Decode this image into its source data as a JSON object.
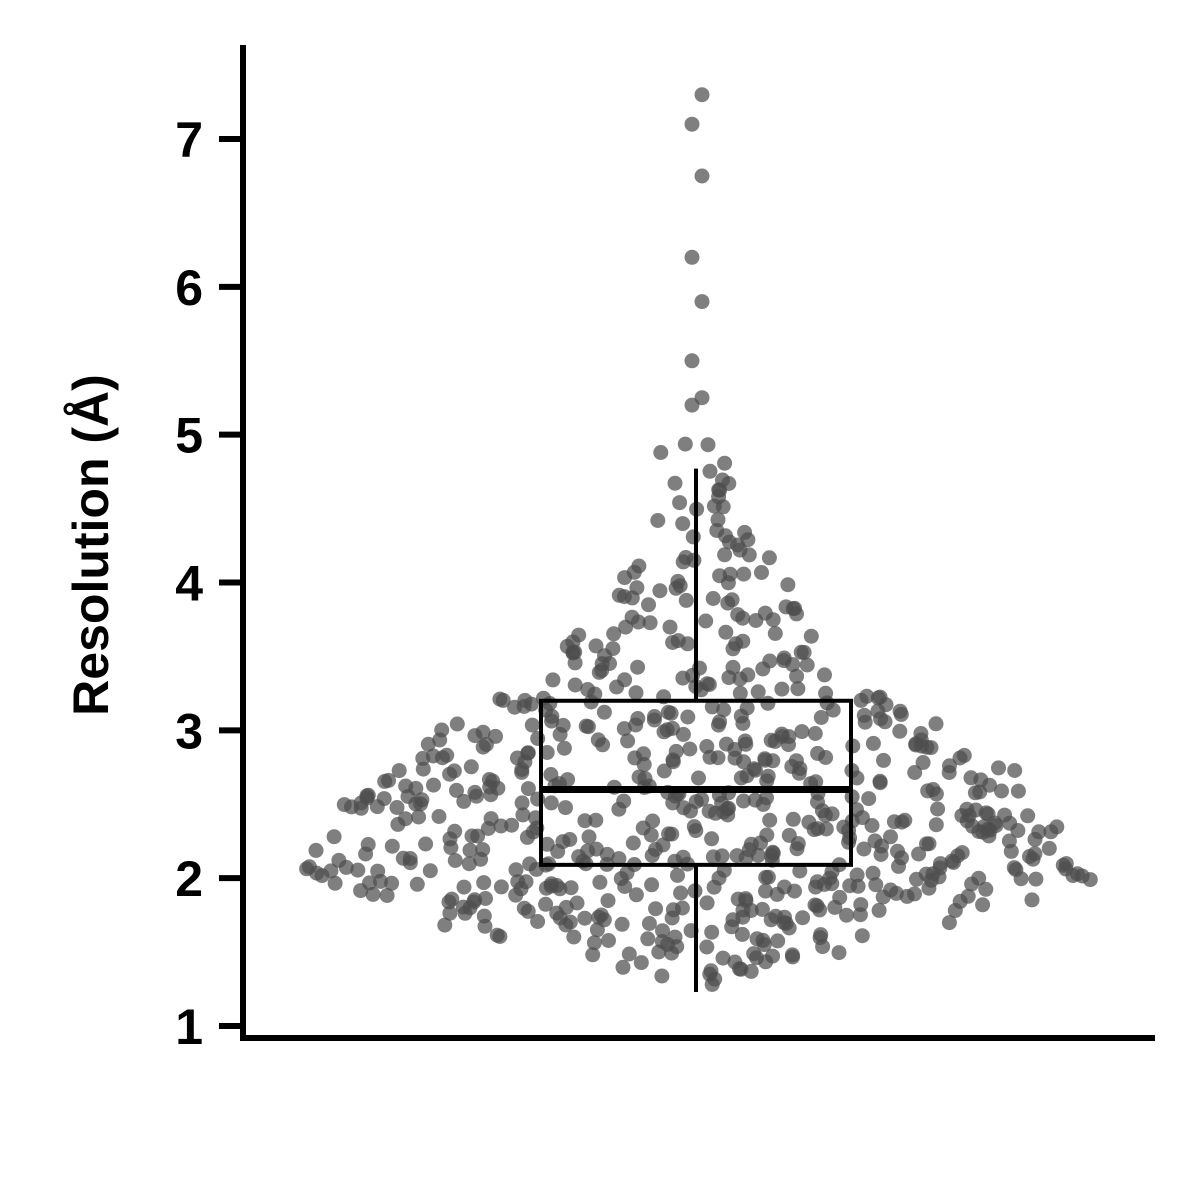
{
  "chart_data": {
    "type": "scatter",
    "subtype": "box-and-swarm",
    "title": "",
    "xlabel": "",
    "ylabel": "Resolution (Å)",
    "ylim": [
      1,
      7.6
    ],
    "yticks": [
      1,
      2,
      3,
      4,
      5,
      6,
      7
    ],
    "grid": false,
    "legend": "none",
    "point_color": "#4d4d4d",
    "box": {
      "q1": 2.09,
      "median": 2.6,
      "q3": 3.2,
      "whisker_low": 1.23,
      "whisker_high": 4.77
    },
    "distribution": [
      {
        "y": 1.3,
        "n": 4
      },
      {
        "y": 1.4,
        "n": 8
      },
      {
        "y": 1.5,
        "n": 14
      },
      {
        "y": 1.6,
        "n": 20
      },
      {
        "y": 1.7,
        "n": 26
      },
      {
        "y": 1.8,
        "n": 32
      },
      {
        "y": 1.9,
        "n": 38
      },
      {
        "y": 2.0,
        "n": 44
      },
      {
        "y": 2.1,
        "n": 44
      },
      {
        "y": 2.2,
        "n": 42
      },
      {
        "y": 2.3,
        "n": 40
      },
      {
        "y": 2.4,
        "n": 38
      },
      {
        "y": 2.5,
        "n": 38
      },
      {
        "y": 2.6,
        "n": 36
      },
      {
        "y": 2.7,
        "n": 34
      },
      {
        "y": 2.8,
        "n": 30
      },
      {
        "y": 2.9,
        "n": 28
      },
      {
        "y": 3.0,
        "n": 26
      },
      {
        "y": 3.1,
        "n": 22
      },
      {
        "y": 3.2,
        "n": 20
      },
      {
        "y": 3.3,
        "n": 16
      },
      {
        "y": 3.4,
        "n": 14
      },
      {
        "y": 3.5,
        "n": 12
      },
      {
        "y": 3.6,
        "n": 12
      },
      {
        "y": 3.7,
        "n": 10
      },
      {
        "y": 3.8,
        "n": 9
      },
      {
        "y": 3.9,
        "n": 8
      },
      {
        "y": 4.0,
        "n": 8
      },
      {
        "y": 4.1,
        "n": 6
      },
      {
        "y": 4.2,
        "n": 6
      },
      {
        "y": 4.3,
        "n": 6
      },
      {
        "y": 4.4,
        "n": 4
      },
      {
        "y": 4.5,
        "n": 4
      },
      {
        "y": 4.6,
        "n": 3
      },
      {
        "y": 4.7,
        "n": 3
      },
      {
        "y": 4.8,
        "n": 2
      },
      {
        "y": 4.9,
        "n": 3
      }
    ],
    "outliers": [
      5.2,
      5.25,
      5.5,
      5.9,
      6.2,
      6.75,
      7.1,
      7.3
    ]
  }
}
